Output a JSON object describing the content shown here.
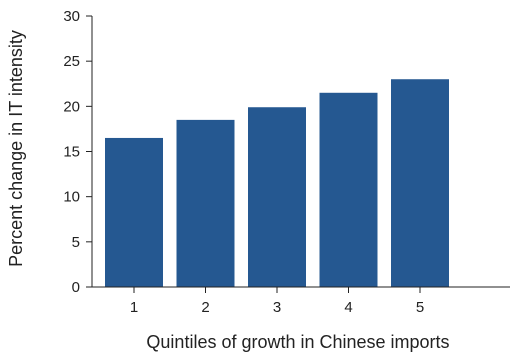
{
  "chart_data": {
    "type": "bar",
    "title": "",
    "xlabel": "Quintiles of growth in Chinese imports",
    "ylabel": "Percent change in IT intensity",
    "categories": [
      "1",
      "2",
      "3",
      "4",
      "5"
    ],
    "values": [
      16.5,
      18.5,
      19.9,
      21.5,
      23.0
    ],
    "ylim": [
      0,
      30
    ],
    "yticks": [
      "0",
      "5",
      "10",
      "15",
      "20",
      "25",
      "30"
    ],
    "grid": false,
    "legend": "none",
    "colors": {
      "bar": "#255891",
      "axis": "#222222"
    }
  }
}
